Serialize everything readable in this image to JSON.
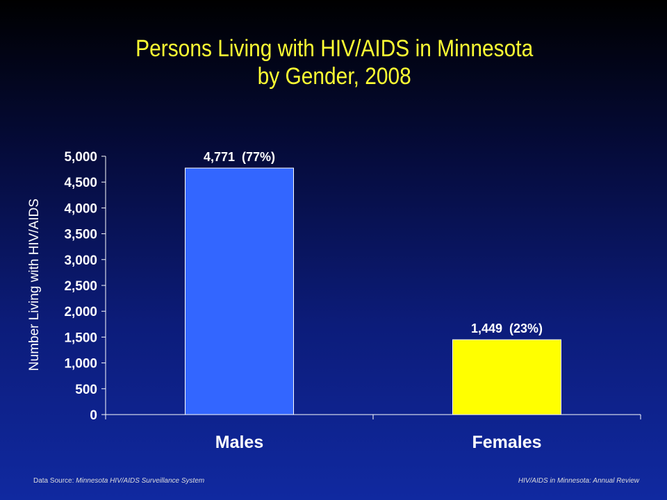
{
  "chart_data": {
    "type": "bar",
    "title_line1": "Persons Living with HIV/AIDS in Minnesota",
    "title_line2": "by Gender, 2008",
    "xlabel": "",
    "ylabel": "Number Living with HIV/AIDS",
    "categories": [
      "Males",
      "Females"
    ],
    "values": [
      4771,
      1449
    ],
    "data_labels": [
      "4,771  (77%)",
      "1,449  (23%)"
    ],
    "bar_colors": [
      "#3366ff",
      "#ffff00"
    ],
    "ylim": [
      0,
      5000
    ],
    "yticks": [
      0,
      500,
      1000,
      1500,
      2000,
      2500,
      3000,
      3500,
      4000,
      4500,
      5000
    ],
    "ytick_labels": [
      "0",
      "500",
      "1,000",
      "1,500",
      "2,000",
      "2,500",
      "3,000",
      "3,500",
      "4,000",
      "4,500",
      "5,000"
    ],
    "grid": false,
    "legend": "none"
  },
  "footer": {
    "source_prefix": "Data Source:",
    "source_text": "Minnesota HIV/AIDS Surveillance System",
    "right_text": "HIV/AIDS in Minnesota: Annual Review"
  },
  "colors": {
    "title": "#ffff33",
    "text": "#ffffff",
    "axis": "#ffffff"
  }
}
